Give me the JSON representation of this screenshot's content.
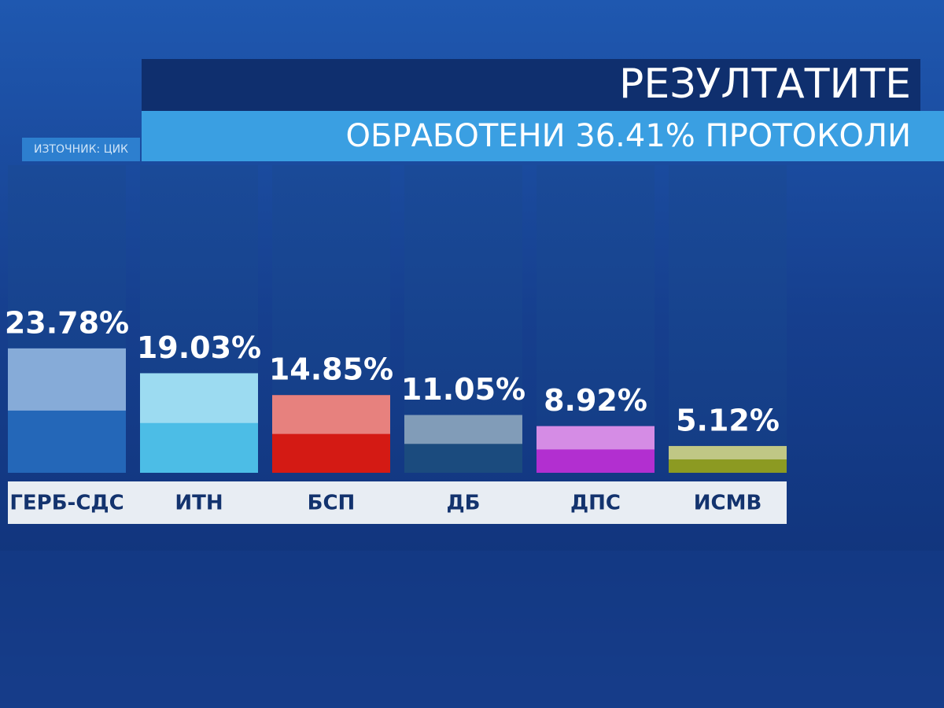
{
  "chart_data": {
    "type": "bar",
    "title": "РЕЗУЛТАТИТЕ",
    "subtitle": "ОБРАБОТЕНИ 36.41% ПРОТОКОЛИ",
    "source": "ИЗТОЧНИК: ЦИК",
    "categories": [
      "ГЕРБ-СДС",
      "ИТН",
      "БСП",
      "ДБ",
      "ДПС",
      "ИСМВ"
    ],
    "values": [
      23.78,
      19.03,
      14.85,
      11.05,
      8.92,
      5.12
    ],
    "value_labels": [
      "23.78%",
      "19.03%",
      "14.85%",
      "11.05%",
      "8.92%",
      "5.12%"
    ],
    "colors": [
      "#2467b8",
      "#4cbde6",
      "#d41a14",
      "#1b4b7e",
      "#b22fd0",
      "#8c9a22"
    ]
  }
}
